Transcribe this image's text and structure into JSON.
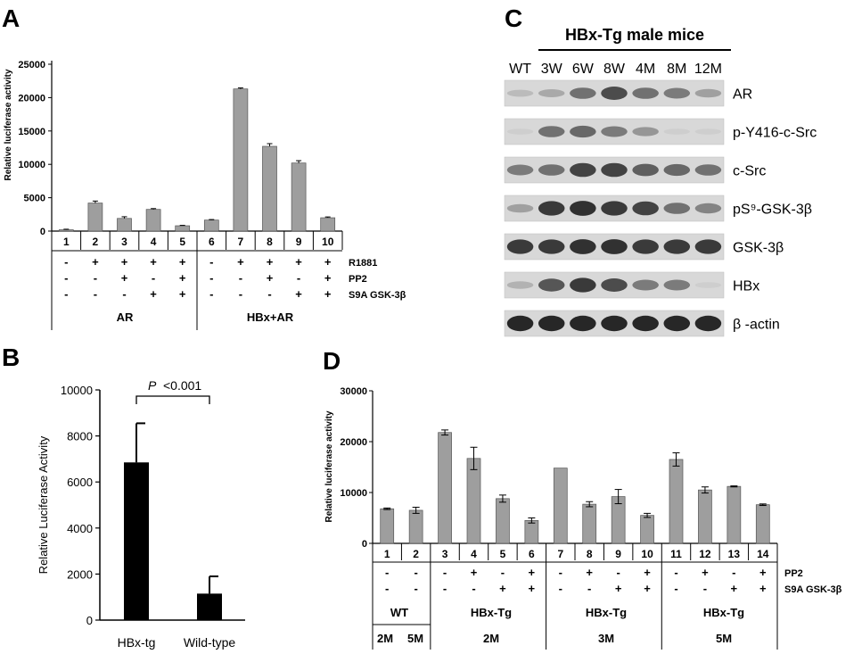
{
  "panels": {
    "A": {
      "letter": "A",
      "ylabel": "Relative luciferase activity",
      "yticks": [
        "0",
        "5000",
        "10000",
        "15000",
        "20000",
        "25000"
      ],
      "lanes": [
        "1",
        "2",
        "3",
        "4",
        "5",
        "6",
        "7",
        "8",
        "9",
        "10"
      ],
      "rows": [
        {
          "label": "R1881",
          "marks": [
            "-",
            "+",
            "+",
            "+",
            "+",
            "-",
            "+",
            "+",
            "+",
            "+"
          ]
        },
        {
          "label": "PP2",
          "marks": [
            "-",
            "-",
            "+",
            "-",
            "+",
            "-",
            "-",
            "+",
            "-",
            "+"
          ]
        },
        {
          "label": "S9A GSK-3β",
          "marks": [
            "-",
            "-",
            "-",
            "+",
            "+",
            "-",
            "-",
            "-",
            "+",
            "+"
          ]
        }
      ],
      "groups": [
        {
          "label": "AR"
        },
        {
          "label": "HBx+AR"
        }
      ]
    },
    "B": {
      "letter": "B",
      "ylabel": "Relative Luciferase Activity",
      "yticks": [
        "0",
        "2000",
        "4000",
        "6000",
        "8000",
        "10000"
      ],
      "p_italic": "P",
      "p_value": "<0.001"
    },
    "C": {
      "letter": "C",
      "header": "HBx-Tg male mice",
      "lanes": [
        "WT",
        "3W",
        "6W",
        "8W",
        "4M",
        "8M",
        "12M"
      ],
      "blots": [
        {
          "label": "AR",
          "intensity": [
            0.15,
            0.25,
            0.55,
            0.75,
            0.55,
            0.5,
            0.3
          ]
        },
        {
          "label": "p-Y416-c-Src",
          "intensity": [
            0.05,
            0.55,
            0.6,
            0.5,
            0.35,
            0.05,
            0.05
          ]
        },
        {
          "label": "c-Src",
          "intensity": [
            0.5,
            0.55,
            0.8,
            0.8,
            0.65,
            0.6,
            0.55
          ]
        },
        {
          "label": "pS⁹-GSK-3β",
          "intensity": [
            0.3,
            0.85,
            0.9,
            0.85,
            0.8,
            0.55,
            0.45
          ]
        },
        {
          "label": "GSK-3β",
          "intensity": [
            0.85,
            0.85,
            0.9,
            0.9,
            0.85,
            0.85,
            0.85
          ]
        },
        {
          "label": "HBx",
          "intensity": [
            0.2,
            0.7,
            0.85,
            0.75,
            0.5,
            0.5,
            0.05
          ]
        },
        {
          "label": "β -actin",
          "intensity": [
            0.95,
            0.95,
            0.95,
            0.95,
            0.95,
            0.95,
            0.95
          ]
        }
      ]
    },
    "D": {
      "letter": "D",
      "ylabel": "Relative luciferase activity",
      "yticks": [
        "0",
        "10000",
        "20000",
        "30000"
      ],
      "lanes": [
        "1",
        "2",
        "3",
        "4",
        "5",
        "6",
        "7",
        "8",
        "9",
        "10",
        "11",
        "12",
        "13",
        "14"
      ],
      "rows": [
        {
          "label": "PP2",
          "marks": [
            "-",
            "-",
            "-",
            "+",
            "-",
            "+",
            "-",
            "+",
            "-",
            "+",
            "-",
            "+",
            "-",
            "+"
          ]
        },
        {
          "label": "S9A GSK-3β",
          "marks": [
            "-",
            "-",
            "-",
            "-",
            "+",
            "+",
            "-",
            "-",
            "+",
            "+",
            "-",
            "-",
            "+",
            "+"
          ]
        }
      ],
      "groups": [
        {
          "label": "WT"
        },
        {
          "label": "HBx-Tg"
        },
        {
          "label": "HBx-Tg"
        },
        {
          "label": "HBx-Tg"
        }
      ],
      "ages": [
        "2M",
        "5M",
        "2M",
        "3M",
        "5M"
      ]
    }
  },
  "chart_data": [
    {
      "panel": "A",
      "type": "bar",
      "categories": [
        "1",
        "2",
        "3",
        "4",
        "5",
        "6",
        "7",
        "8",
        "9",
        "10"
      ],
      "values": [
        200,
        4200,
        1900,
        3250,
        800,
        1650,
        21300,
        12700,
        10200,
        2000
      ],
      "errors": [
        80,
        300,
        250,
        120,
        60,
        80,
        150,
        400,
        350,
        120
      ],
      "ylabel": "Relative luciferase activity",
      "ylim": [
        0,
        25000
      ],
      "color": "#9e9e9e"
    },
    {
      "panel": "B",
      "type": "bar",
      "categories": [
        "HBx-tg",
        "Wild-type"
      ],
      "values": [
        6850,
        1150
      ],
      "errors": [
        1700,
        750
      ],
      "ylabel": "Relative Luciferase Activity",
      "ylim": [
        0,
        10000
      ],
      "annotation": "P <0.001",
      "color": "#000000"
    },
    {
      "panel": "D",
      "type": "bar",
      "categories": [
        "1",
        "2",
        "3",
        "4",
        "5",
        "6",
        "7",
        "8",
        "9",
        "10",
        "11",
        "12",
        "13",
        "14"
      ],
      "values": [
        6800,
        6500,
        21800,
        16700,
        8800,
        4500,
        14800,
        7700,
        9200,
        5500,
        16500,
        10500,
        11200,
        7600
      ],
      "errors": [
        150,
        600,
        500,
        2200,
        700,
        500,
        0,
        500,
        1400,
        400,
        1300,
        600,
        100,
        150
      ],
      "ylabel": "Relative luciferase activity",
      "ylim": [
        0,
        30000
      ],
      "color": "#9e9e9e"
    }
  ]
}
